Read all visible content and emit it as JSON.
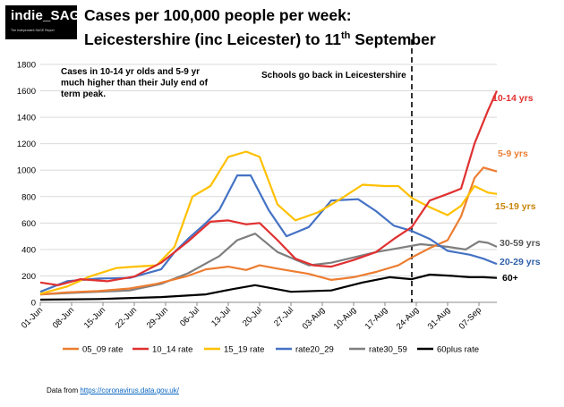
{
  "logo": {
    "title": "indie_SAGE",
    "tagline": "The Independent SAGE Report"
  },
  "header": {
    "title_line1": "Cases per 100,000 people per week:",
    "title_line2_pre": "Leicestershire (inc Leicester) to 11",
    "title_line2_sup": "th",
    "title_line2_post": " September"
  },
  "source": {
    "prefix": "Data from ",
    "link": "https://coronavirus.data.gov.uk/"
  },
  "colors": {
    "05_09": "#ed7d31",
    "10_14": "#e03030",
    "15_19": "#ffc000",
    "20_29": "#4472c4",
    "30_59": "#7f7f7f",
    "60plus": "#000000"
  },
  "chart_data": {
    "type": "line",
    "title": "Cases per 100,000 people per week: Leicestershire (inc Leicester) to 11th September",
    "x_start": "2021-06-01",
    "x_end": "2021-09-11",
    "x_tick_labels": [
      "01-Jun",
      "08-Jun",
      "15-Jun",
      "22-Jun",
      "29-Jun",
      "06-Jul",
      "13-Jul",
      "20-Jul",
      "27-Jul",
      "03-Aug",
      "10-Aug",
      "17-Aug",
      "24-Aug",
      "31-Aug",
      "07-Sep"
    ],
    "ylim": [
      0,
      1800
    ],
    "y_ticks": [
      0,
      200,
      400,
      600,
      800,
      1000,
      1200,
      1400,
      1600,
      1800
    ],
    "grid": "horizontal",
    "legend_position": "bottom",
    "annotations": [
      {
        "text_lines": [
          "Cases in 10-14 yr olds and 5-9 yr",
          "much higher than their July end of",
          "term peak."
        ]
      },
      {
        "text_lines": [
          "Schools go back in Leicestershire"
        ],
        "vline_date": "2021-08-23"
      }
    ],
    "series": [
      {
        "name": "05_09 rate",
        "end_label": "5-9 yrs",
        "color_key": "05_09",
        "points": [
          [
            "2021-06-01",
            60
          ],
          [
            "2021-06-07",
            75
          ],
          [
            "2021-06-14",
            85
          ],
          [
            "2021-06-21",
            105
          ],
          [
            "2021-06-27",
            140
          ],
          [
            "2021-07-04",
            200
          ],
          [
            "2021-07-08",
            250
          ],
          [
            "2021-07-13",
            270
          ],
          [
            "2021-07-17",
            245
          ],
          [
            "2021-07-20",
            280
          ],
          [
            "2021-07-24",
            255
          ],
          [
            "2021-07-31",
            215
          ],
          [
            "2021-08-05",
            170
          ],
          [
            "2021-08-10",
            190
          ],
          [
            "2021-08-15",
            230
          ],
          [
            "2021-08-20",
            280
          ],
          [
            "2021-08-23",
            340
          ],
          [
            "2021-08-27",
            410
          ],
          [
            "2021-08-31",
            470
          ],
          [
            "2021-09-03",
            650
          ],
          [
            "2021-09-06",
            940
          ],
          [
            "2021-09-08",
            1020
          ],
          [
            "2021-09-11",
            990
          ]
        ]
      },
      {
        "name": "10_14 rate",
        "end_label": "10-14 yrs",
        "color_key": "10_14",
        "points": [
          [
            "2021-06-01",
            150
          ],
          [
            "2021-06-05",
            130
          ],
          [
            "2021-06-10",
            175
          ],
          [
            "2021-06-16",
            160
          ],
          [
            "2021-06-22",
            195
          ],
          [
            "2021-06-28",
            300
          ],
          [
            "2021-07-04",
            460
          ],
          [
            "2021-07-09",
            610
          ],
          [
            "2021-07-13",
            620
          ],
          [
            "2021-07-17",
            590
          ],
          [
            "2021-07-20",
            600
          ],
          [
            "2021-07-24",
            470
          ],
          [
            "2021-07-28",
            330
          ],
          [
            "2021-08-01",
            280
          ],
          [
            "2021-08-05",
            270
          ],
          [
            "2021-08-10",
            320
          ],
          [
            "2021-08-15",
            380
          ],
          [
            "2021-08-19",
            480
          ],
          [
            "2021-08-23",
            570
          ],
          [
            "2021-08-27",
            770
          ],
          [
            "2021-08-31",
            820
          ],
          [
            "2021-09-03",
            860
          ],
          [
            "2021-09-06",
            1200
          ],
          [
            "2021-09-09",
            1450
          ],
          [
            "2021-09-11",
            1600
          ]
        ]
      },
      {
        "name": "15_19 rate",
        "end_label": "15-19 yrs",
        "color_key": "15_19",
        "points": [
          [
            "2021-06-01",
            65
          ],
          [
            "2021-06-07",
            120
          ],
          [
            "2021-06-12",
            195
          ],
          [
            "2021-06-18",
            260
          ],
          [
            "2021-06-22",
            270
          ],
          [
            "2021-06-27",
            280
          ],
          [
            "2021-07-01",
            420
          ],
          [
            "2021-07-05",
            800
          ],
          [
            "2021-07-09",
            880
          ],
          [
            "2021-07-13",
            1100
          ],
          [
            "2021-07-17",
            1140
          ],
          [
            "2021-07-20",
            1100
          ],
          [
            "2021-07-24",
            740
          ],
          [
            "2021-07-28",
            620
          ],
          [
            "2021-08-02",
            680
          ],
          [
            "2021-08-07",
            780
          ],
          [
            "2021-08-12",
            890
          ],
          [
            "2021-08-17",
            880
          ],
          [
            "2021-08-20",
            880
          ],
          [
            "2021-08-23",
            790
          ],
          [
            "2021-08-27",
            720
          ],
          [
            "2021-08-31",
            660
          ],
          [
            "2021-09-03",
            730
          ],
          [
            "2021-09-06",
            880
          ],
          [
            "2021-09-09",
            830
          ],
          [
            "2021-09-11",
            820
          ]
        ]
      },
      {
        "name": "rate20_29",
        "end_label": "20-29 yrs",
        "color_key": "20_29",
        "points": [
          [
            "2021-06-01",
            80
          ],
          [
            "2021-06-07",
            160
          ],
          [
            "2021-06-14",
            180
          ],
          [
            "2021-06-21",
            185
          ],
          [
            "2021-06-28",
            250
          ],
          [
            "2021-07-01",
            380
          ],
          [
            "2021-07-04",
            480
          ],
          [
            "2021-07-08",
            600
          ],
          [
            "2021-07-11",
            700
          ],
          [
            "2021-07-15",
            960
          ],
          [
            "2021-07-18",
            960
          ],
          [
            "2021-07-22",
            700
          ],
          [
            "2021-07-26",
            500
          ],
          [
            "2021-07-31",
            570
          ],
          [
            "2021-08-05",
            770
          ],
          [
            "2021-08-11",
            780
          ],
          [
            "2021-08-15",
            690
          ],
          [
            "2021-08-19",
            580
          ],
          [
            "2021-08-23",
            540
          ],
          [
            "2021-08-27",
            480
          ],
          [
            "2021-08-31",
            390
          ],
          [
            "2021-09-05",
            360
          ],
          [
            "2021-09-08",
            330
          ],
          [
            "2021-09-11",
            290
          ]
        ]
      },
      {
        "name": "rate30_59",
        "end_label": "30-59 yrs",
        "color_key": "30_59",
        "points": [
          [
            "2021-06-01",
            60
          ],
          [
            "2021-06-07",
            70
          ],
          [
            "2021-06-14",
            80
          ],
          [
            "2021-06-21",
            90
          ],
          [
            "2021-06-28",
            140
          ],
          [
            "2021-07-04",
            220
          ],
          [
            "2021-07-11",
            350
          ],
          [
            "2021-07-15",
            470
          ],
          [
            "2021-07-19",
            520
          ],
          [
            "2021-07-24",
            380
          ],
          [
            "2021-07-31",
            280
          ],
          [
            "2021-08-05",
            300
          ],
          [
            "2021-08-10",
            340
          ],
          [
            "2021-08-15",
            380
          ],
          [
            "2021-08-20",
            410
          ],
          [
            "2021-08-25",
            440
          ],
          [
            "2021-08-31",
            420
          ],
          [
            "2021-09-04",
            400
          ],
          [
            "2021-09-07",
            460
          ],
          [
            "2021-09-09",
            450
          ],
          [
            "2021-09-11",
            420
          ]
        ]
      },
      {
        "name": "60plus rate",
        "end_label": "60+",
        "color_key": "60plus",
        "points": [
          [
            "2021-06-01",
            20
          ],
          [
            "2021-06-14",
            25
          ],
          [
            "2021-06-28",
            40
          ],
          [
            "2021-07-08",
            60
          ],
          [
            "2021-07-14",
            100
          ],
          [
            "2021-07-19",
            130
          ],
          [
            "2021-07-27",
            80
          ],
          [
            "2021-08-05",
            90
          ],
          [
            "2021-08-12",
            150
          ],
          [
            "2021-08-18",
            190
          ],
          [
            "2021-08-23",
            175
          ],
          [
            "2021-08-27",
            210
          ],
          [
            "2021-09-01",
            200
          ],
          [
            "2021-09-05",
            190
          ],
          [
            "2021-09-08",
            190
          ],
          [
            "2021-09-11",
            185
          ]
        ]
      }
    ]
  }
}
